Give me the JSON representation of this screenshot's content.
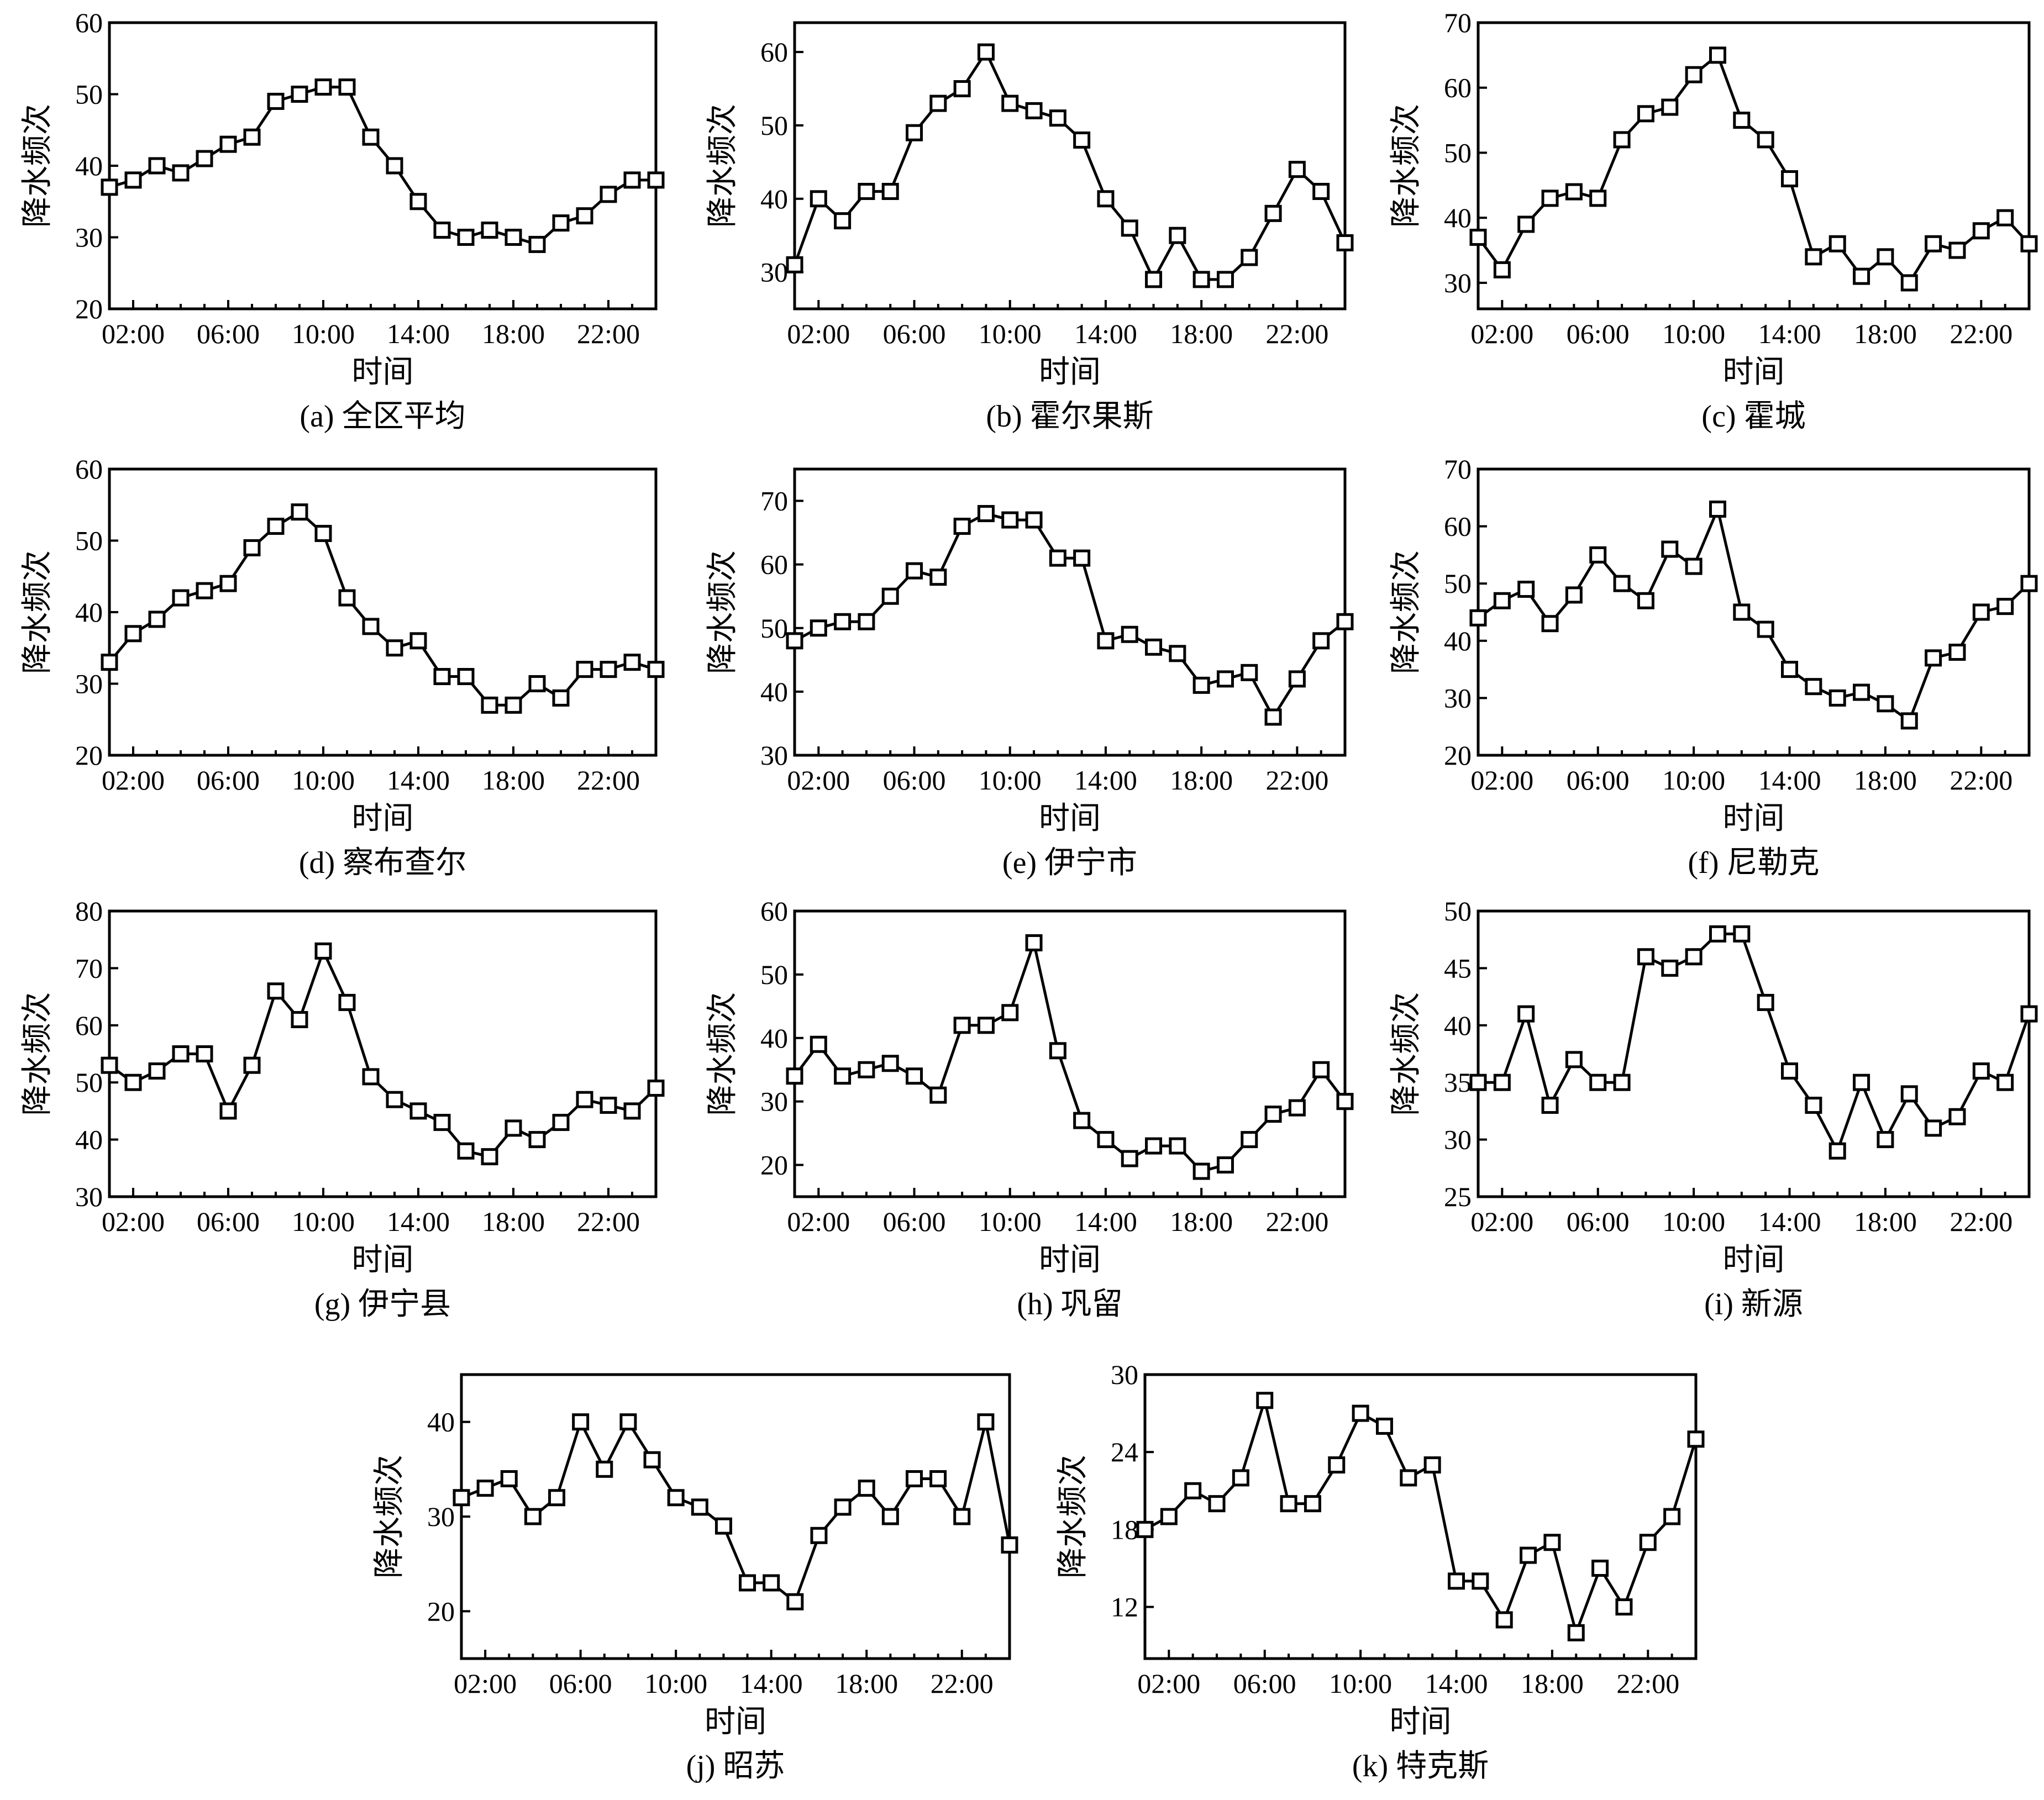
{
  "chart_data": [
    {
      "type": "line",
      "caption": "(a) 全区平均",
      "xlabel": "时间",
      "ylabel": "降水频次",
      "x": [
        "01:00",
        "02:00",
        "03:00",
        "04:00",
        "05:00",
        "06:00",
        "07:00",
        "08:00",
        "09:00",
        "10:00",
        "11:00",
        "12:00",
        "13:00",
        "14:00",
        "15:00",
        "16:00",
        "17:00",
        "18:00",
        "19:00",
        "20:00",
        "21:00",
        "22:00",
        "23:00",
        "24:00"
      ],
      "xticks": [
        "02:00",
        "06:00",
        "10:00",
        "14:00",
        "18:00",
        "22:00"
      ],
      "yticks": [
        20,
        30,
        40,
        50,
        60
      ],
      "ylim": [
        20,
        60
      ],
      "series": [
        {
          "values": [
            37,
            38,
            40,
            39,
            41,
            43,
            44,
            49,
            50,
            51,
            51,
            44,
            40,
            35,
            31,
            30,
            31,
            30,
            29,
            32,
            33,
            36,
            38,
            38
          ]
        }
      ]
    },
    {
      "type": "line",
      "caption": "(b) 霍尔果斯",
      "xlabel": "时间",
      "ylabel": "降水频次",
      "x": [
        "01:00",
        "02:00",
        "03:00",
        "04:00",
        "05:00",
        "06:00",
        "07:00",
        "08:00",
        "09:00",
        "10:00",
        "11:00",
        "12:00",
        "13:00",
        "14:00",
        "15:00",
        "16:00",
        "17:00",
        "18:00",
        "19:00",
        "20:00",
        "21:00",
        "22:00",
        "23:00",
        "24:00"
      ],
      "xticks": [
        "02:00",
        "06:00",
        "10:00",
        "14:00",
        "18:00",
        "22:00"
      ],
      "yticks": [
        30,
        40,
        50,
        60
      ],
      "ylim": [
        25,
        64
      ],
      "series": [
        {
          "values": [
            31,
            40,
            37,
            41,
            41,
            49,
            53,
            55,
            60,
            53,
            52,
            51,
            48,
            40,
            36,
            29,
            35,
            29,
            29,
            32,
            38,
            44,
            41,
            34
          ]
        }
      ]
    },
    {
      "type": "line",
      "caption": "(c) 霍城",
      "xlabel": "时间",
      "ylabel": "降水频次",
      "x": [
        "01:00",
        "02:00",
        "03:00",
        "04:00",
        "05:00",
        "06:00",
        "07:00",
        "08:00",
        "09:00",
        "10:00",
        "11:00",
        "12:00",
        "13:00",
        "14:00",
        "15:00",
        "16:00",
        "17:00",
        "18:00",
        "19:00",
        "20:00",
        "21:00",
        "22:00",
        "23:00",
        "24:00"
      ],
      "xticks": [
        "02:00",
        "06:00",
        "10:00",
        "14:00",
        "18:00",
        "22:00"
      ],
      "yticks": [
        30,
        40,
        50,
        60,
        70
      ],
      "ylim": [
        26,
        70
      ],
      "series": [
        {
          "values": [
            37,
            32,
            39,
            43,
            44,
            43,
            52,
            56,
            57,
            62,
            65,
            55,
            52,
            46,
            34,
            36,
            31,
            34,
            30,
            36,
            35,
            38,
            40,
            36
          ]
        }
      ]
    },
    {
      "type": "line",
      "caption": "(d) 察布查尔",
      "xlabel": "时间",
      "ylabel": "降水频次",
      "x": [
        "01:00",
        "02:00",
        "03:00",
        "04:00",
        "05:00",
        "06:00",
        "07:00",
        "08:00",
        "09:00",
        "10:00",
        "11:00",
        "12:00",
        "13:00",
        "14:00",
        "15:00",
        "16:00",
        "17:00",
        "18:00",
        "19:00",
        "20:00",
        "21:00",
        "22:00",
        "23:00",
        "24:00"
      ],
      "xticks": [
        "02:00",
        "06:00",
        "10:00",
        "14:00",
        "18:00",
        "22:00"
      ],
      "yticks": [
        20,
        30,
        40,
        50,
        60
      ],
      "ylim": [
        20,
        60
      ],
      "series": [
        {
          "values": [
            33,
            37,
            39,
            42,
            43,
            44,
            49,
            52,
            54,
            51,
            42,
            38,
            35,
            36,
            31,
            31,
            27,
            27,
            30,
            28,
            32,
            32,
            33,
            32
          ]
        }
      ]
    },
    {
      "type": "line",
      "caption": "(e) 伊宁市",
      "xlabel": "时间",
      "ylabel": "降水频次",
      "x": [
        "01:00",
        "02:00",
        "03:00",
        "04:00",
        "05:00",
        "06:00",
        "07:00",
        "08:00",
        "09:00",
        "10:00",
        "11:00",
        "12:00",
        "13:00",
        "14:00",
        "15:00",
        "16:00",
        "17:00",
        "18:00",
        "19:00",
        "20:00",
        "21:00",
        "22:00",
        "23:00",
        "24:00"
      ],
      "xticks": [
        "02:00",
        "06:00",
        "10:00",
        "14:00",
        "18:00",
        "22:00"
      ],
      "yticks": [
        30,
        40,
        50,
        60,
        70
      ],
      "ylim": [
        30,
        75
      ],
      "series": [
        {
          "values": [
            48,
            50,
            51,
            51,
            55,
            59,
            58,
            66,
            68,
            67,
            67,
            61,
            61,
            48,
            49,
            47,
            46,
            41,
            42,
            43,
            36,
            42,
            48,
            51
          ]
        }
      ]
    },
    {
      "type": "line",
      "caption": "(f) 尼勒克",
      "xlabel": "时间",
      "ylabel": "降水频次",
      "x": [
        "01:00",
        "02:00",
        "03:00",
        "04:00",
        "05:00",
        "06:00",
        "07:00",
        "08:00",
        "09:00",
        "10:00",
        "11:00",
        "12:00",
        "13:00",
        "14:00",
        "15:00",
        "16:00",
        "17:00",
        "18:00",
        "19:00",
        "20:00",
        "21:00",
        "22:00",
        "23:00",
        "24:00"
      ],
      "xticks": [
        "02:00",
        "06:00",
        "10:00",
        "14:00",
        "18:00",
        "22:00"
      ],
      "yticks": [
        20,
        30,
        40,
        50,
        60,
        70
      ],
      "ylim": [
        20,
        70
      ],
      "series": [
        {
          "values": [
            44,
            47,
            49,
            43,
            48,
            55,
            50,
            47,
            56,
            53,
            63,
            45,
            42,
            35,
            32,
            30,
            31,
            29,
            26,
            37,
            38,
            45,
            46,
            50
          ]
        }
      ]
    },
    {
      "type": "line",
      "caption": "(g) 伊宁县",
      "xlabel": "时间",
      "ylabel": "降水频次",
      "x": [
        "01:00",
        "02:00",
        "03:00",
        "04:00",
        "05:00",
        "06:00",
        "07:00",
        "08:00",
        "09:00",
        "10:00",
        "11:00",
        "12:00",
        "13:00",
        "14:00",
        "15:00",
        "16:00",
        "17:00",
        "18:00",
        "19:00",
        "20:00",
        "21:00",
        "22:00",
        "23:00",
        "24:00"
      ],
      "xticks": [
        "02:00",
        "06:00",
        "10:00",
        "14:00",
        "18:00",
        "22:00"
      ],
      "yticks": [
        30,
        40,
        50,
        60,
        70,
        80
      ],
      "ylim": [
        30,
        80
      ],
      "series": [
        {
          "values": [
            53,
            50,
            52,
            55,
            55,
            45,
            53,
            66,
            61,
            73,
            64,
            51,
            47,
            45,
            43,
            38,
            37,
            42,
            40,
            43,
            47,
            46,
            45,
            49
          ]
        }
      ]
    },
    {
      "type": "line",
      "caption": "(h) 巩留",
      "xlabel": "时间",
      "ylabel": "降水频次",
      "x": [
        "01:00",
        "02:00",
        "03:00",
        "04:00",
        "05:00",
        "06:00",
        "07:00",
        "08:00",
        "09:00",
        "10:00",
        "11:00",
        "12:00",
        "13:00",
        "14:00",
        "15:00",
        "16:00",
        "17:00",
        "18:00",
        "19:00",
        "20:00",
        "21:00",
        "22:00",
        "23:00",
        "24:00"
      ],
      "xticks": [
        "02:00",
        "06:00",
        "10:00",
        "14:00",
        "18:00",
        "22:00"
      ],
      "yticks": [
        20,
        30,
        40,
        50,
        60
      ],
      "ylim": [
        15,
        60
      ],
      "series": [
        {
          "values": [
            34,
            39,
            34,
            35,
            36,
            34,
            31,
            42,
            42,
            44,
            55,
            38,
            27,
            24,
            21,
            23,
            23,
            19,
            20,
            24,
            28,
            29,
            35,
            30
          ]
        }
      ]
    },
    {
      "type": "line",
      "caption": "(i) 新源",
      "xlabel": "时间",
      "ylabel": "降水频次",
      "x": [
        "01:00",
        "02:00",
        "03:00",
        "04:00",
        "05:00",
        "06:00",
        "07:00",
        "08:00",
        "09:00",
        "10:00",
        "11:00",
        "12:00",
        "13:00",
        "14:00",
        "15:00",
        "16:00",
        "17:00",
        "18:00",
        "19:00",
        "20:00",
        "21:00",
        "22:00",
        "23:00",
        "24:00"
      ],
      "xticks": [
        "02:00",
        "06:00",
        "10:00",
        "14:00",
        "18:00",
        "22:00"
      ],
      "yticks": [
        25,
        30,
        35,
        40,
        45,
        50
      ],
      "ylim": [
        25,
        50
      ],
      "series": [
        {
          "values": [
            35,
            35,
            41,
            33,
            37,
            35,
            35,
            46,
            45,
            46,
            48,
            48,
            42,
            36,
            33,
            29,
            35,
            30,
            34,
            31,
            32,
            36,
            35,
            41
          ]
        }
      ]
    },
    {
      "type": "line",
      "caption": "(j) 昭苏",
      "xlabel": "时间",
      "ylabel": "降水频次",
      "x": [
        "01:00",
        "02:00",
        "03:00",
        "04:00",
        "05:00",
        "06:00",
        "07:00",
        "08:00",
        "09:00",
        "10:00",
        "11:00",
        "12:00",
        "13:00",
        "14:00",
        "15:00",
        "16:00",
        "17:00",
        "18:00",
        "19:00",
        "20:00",
        "21:00",
        "22:00",
        "23:00",
        "24:00"
      ],
      "xticks": [
        "02:00",
        "06:00",
        "10:00",
        "14:00",
        "18:00",
        "22:00"
      ],
      "yticks": [
        20,
        30,
        40
      ],
      "ylim": [
        15,
        45
      ],
      "series": [
        {
          "values": [
            32,
            33,
            34,
            30,
            32,
            40,
            35,
            40,
            36,
            32,
            31,
            29,
            23,
            23,
            21,
            28,
            31,
            33,
            30,
            34,
            34,
            30,
            40,
            27
          ]
        }
      ]
    },
    {
      "type": "line",
      "caption": "(k) 特克斯",
      "xlabel": "时间",
      "ylabel": "降水频次",
      "x": [
        "01:00",
        "02:00",
        "03:00",
        "04:00",
        "05:00",
        "06:00",
        "07:00",
        "08:00",
        "09:00",
        "10:00",
        "11:00",
        "12:00",
        "13:00",
        "14:00",
        "15:00",
        "16:00",
        "17:00",
        "18:00",
        "19:00",
        "20:00",
        "21:00",
        "22:00",
        "23:00",
        "24:00"
      ],
      "xticks": [
        "02:00",
        "06:00",
        "10:00",
        "14:00",
        "18:00",
        "22:00"
      ],
      "yticks": [
        12,
        18,
        24,
        30
      ],
      "ylim": [
        8,
        30
      ],
      "series": [
        {
          "values": [
            18,
            19,
            21,
            20,
            22,
            28,
            20,
            20,
            23,
            27,
            26,
            22,
            23,
            14,
            14,
            11,
            16,
            17,
            10,
            15,
            12,
            17,
            19,
            25
          ]
        }
      ]
    }
  ]
}
